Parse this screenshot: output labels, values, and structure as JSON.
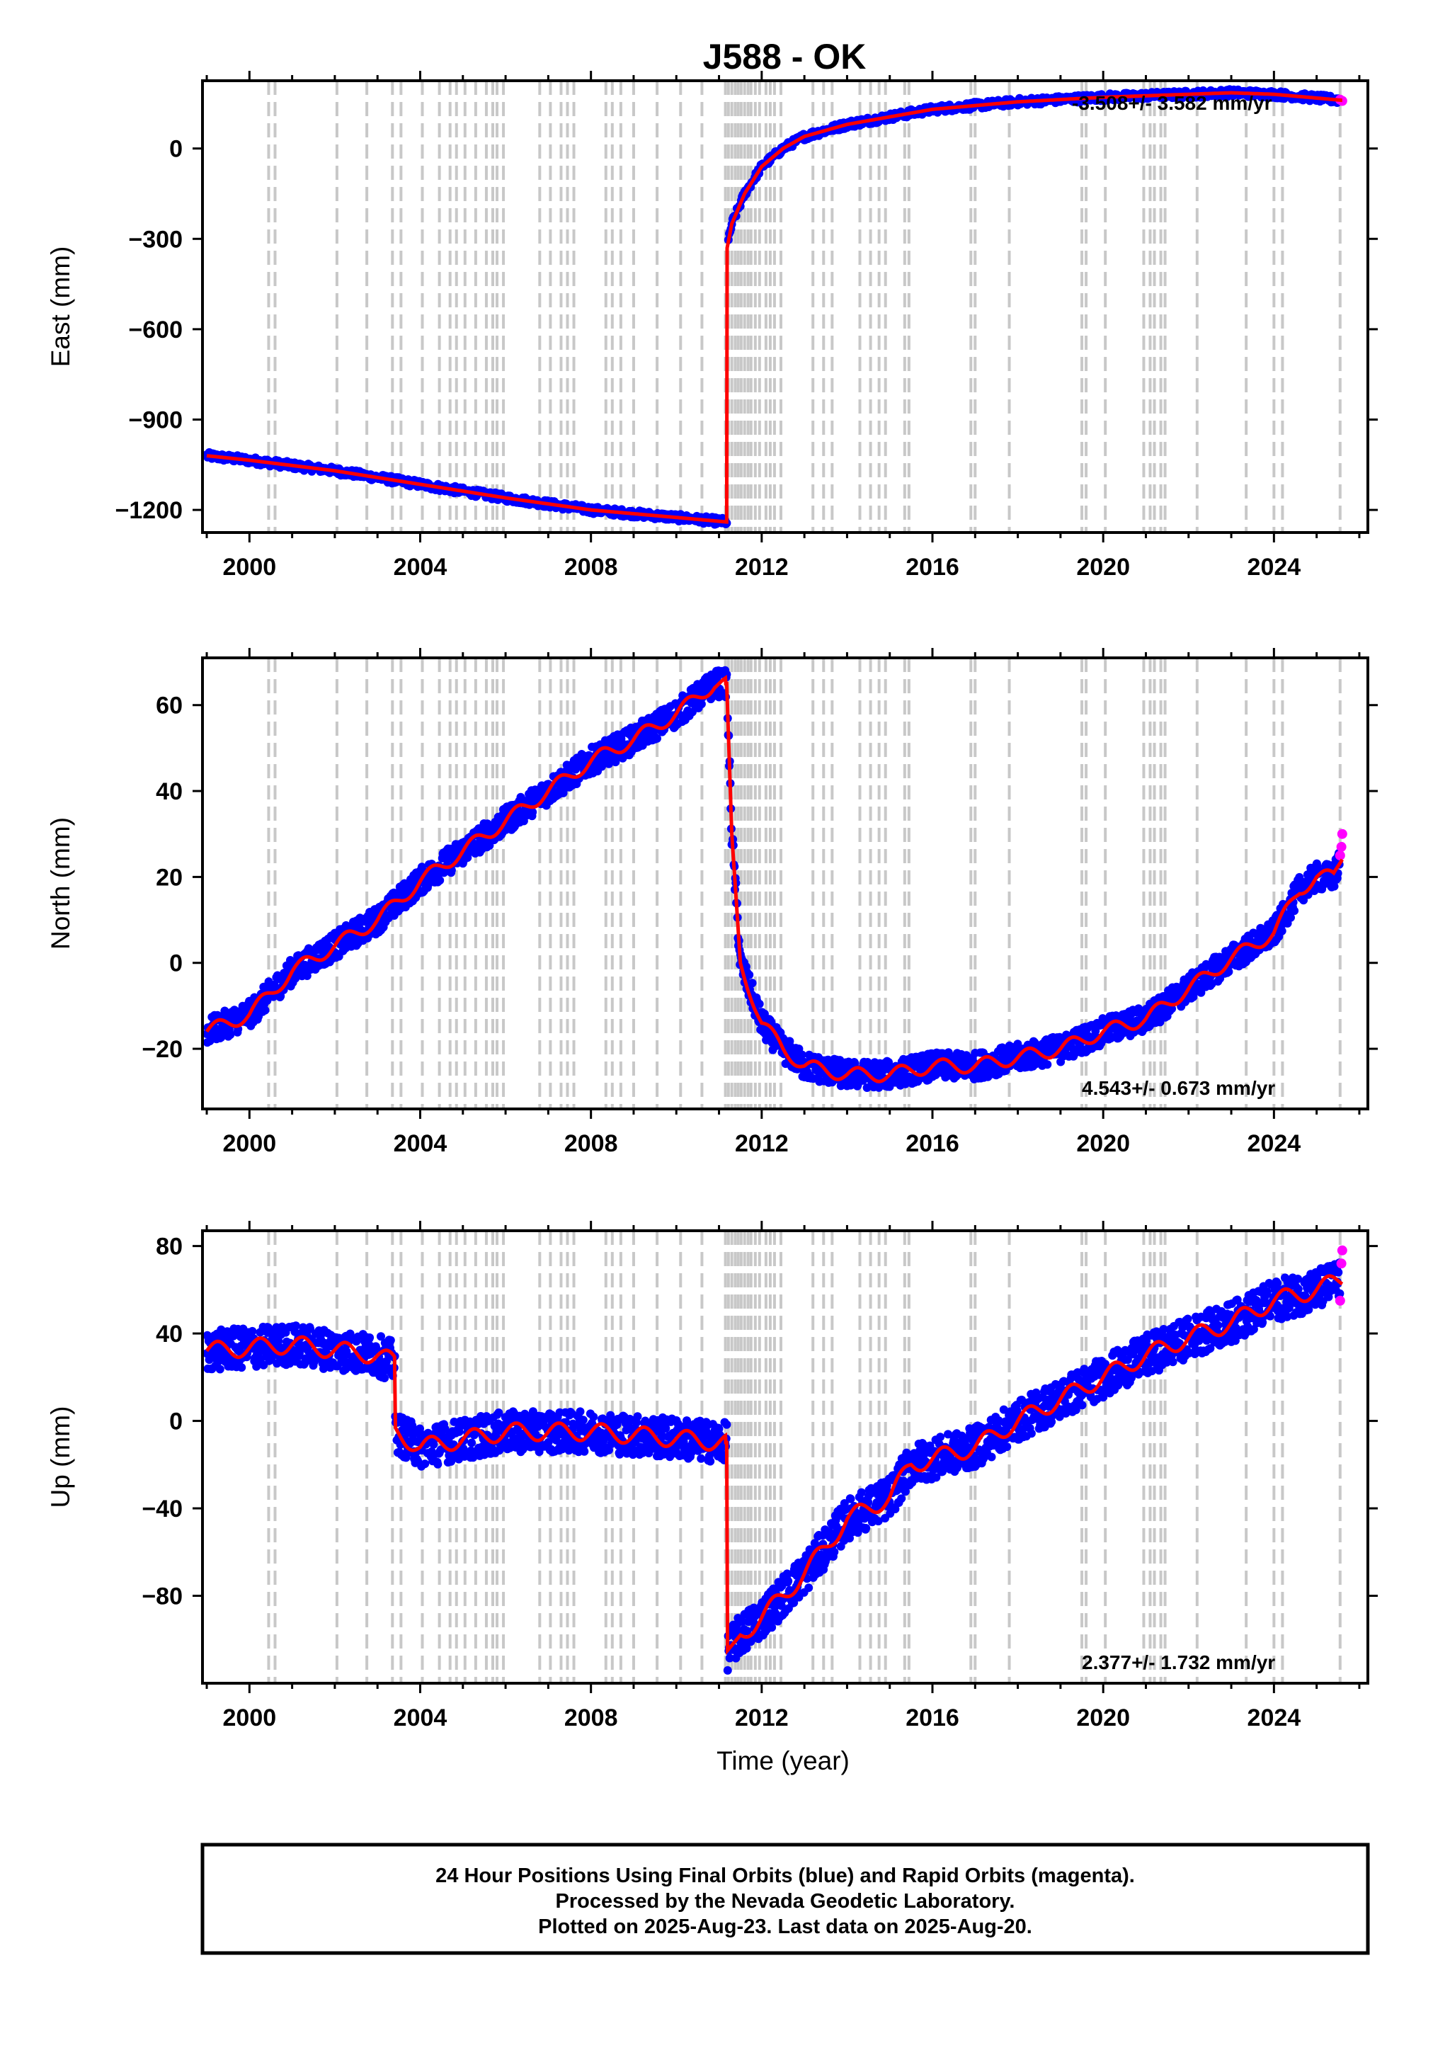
{
  "title": "J588 - OK",
  "colors": {
    "final": "#0000ff",
    "rapid": "#ff00ff",
    "model": "#ff0000",
    "eventline": "#c8c8c8",
    "frame": "#000000"
  },
  "footer": {
    "line1": "24 Hour Positions Using Final Orbits (blue) and Rapid Orbits (magenta).",
    "line2": "Processed by the Nevada Geodetic Laboratory.",
    "line3": "Plotted on 2025-Aug-23. Last data on 2025-Aug-20."
  },
  "chart_data": [
    {
      "type": "scatter",
      "name": "east",
      "ylabel": "East (mm)",
      "xlabel": "",
      "rate_text": "-3.508+/- 3.582 mm/yr",
      "rate_position": "top-right",
      "xlim": [
        1998.9,
        2026.2
      ],
      "ylim": [
        -1275,
        225
      ],
      "x_ticks": [
        2000,
        2004,
        2008,
        2012,
        2016,
        2020,
        2024
      ],
      "x_tick_labels": [
        "2000",
        "2004",
        "2008",
        "2012",
        "2016",
        "2020",
        "2024"
      ],
      "y_ticks": [
        -1200,
        -900,
        -600,
        -300,
        0
      ],
      "y_tick_labels": [
        "−1200",
        "−900",
        "−600",
        "−300",
        "0"
      ],
      "trend_points": [
        [
          1999.0,
          -1020
        ],
        [
          2000.0,
          -1035
        ],
        [
          2002.0,
          -1070
        ],
        [
          2004.0,
          -1115
        ],
        [
          2006.0,
          -1160
        ],
        [
          2008.0,
          -1200
        ],
        [
          2010.0,
          -1225
        ],
        [
          2011.18,
          -1240
        ],
        [
          2011.19,
          -330
        ],
        [
          2011.3,
          -250
        ],
        [
          2011.6,
          -150
        ],
        [
          2012.0,
          -60
        ],
        [
          2012.5,
          0
        ],
        [
          2013.0,
          40
        ],
        [
          2014.0,
          80
        ],
        [
          2015.0,
          105
        ],
        [
          2016.0,
          130
        ],
        [
          2018.0,
          155
        ],
        [
          2020.0,
          170
        ],
        [
          2022.0,
          180
        ],
        [
          2023.0,
          185
        ],
        [
          2024.0,
          180
        ],
        [
          2025.6,
          160
        ]
      ],
      "rapid_points": [
        [
          2025.55,
          162
        ],
        [
          2025.6,
          158
        ]
      ]
    },
    {
      "type": "scatter",
      "name": "north",
      "ylabel": "North (mm)",
      "xlabel": "",
      "rate_text": "4.543+/- 0.673 mm/yr",
      "rate_position": "bottom-right",
      "xlim": [
        1998.9,
        2026.2
      ],
      "ylim": [
        -34,
        71
      ],
      "x_ticks": [
        2000,
        2004,
        2008,
        2012,
        2016,
        2020,
        2024
      ],
      "x_tick_labels": [
        "2000",
        "2004",
        "2008",
        "2012",
        "2016",
        "2020",
        "2024"
      ],
      "y_ticks": [
        -20,
        0,
        20,
        40,
        60
      ],
      "y_tick_labels": [
        "−20",
        "0",
        "20",
        "40",
        "60"
      ],
      "trend_points": [
        [
          1999.0,
          -16
        ],
        [
          2000.0,
          -12
        ],
        [
          2001.0,
          -2
        ],
        [
          2002.0,
          4
        ],
        [
          2003.0,
          10
        ],
        [
          2004.0,
          19
        ],
        [
          2005.0,
          26
        ],
        [
          2006.0,
          33
        ],
        [
          2007.0,
          40
        ],
        [
          2008.0,
          47
        ],
        [
          2009.0,
          52
        ],
        [
          2010.0,
          58
        ],
        [
          2010.9,
          65
        ],
        [
          2011.18,
          65
        ],
        [
          2011.3,
          30
        ],
        [
          2011.5,
          0
        ],
        [
          2012.0,
          -14
        ],
        [
          2012.5,
          -20
        ],
        [
          2013.0,
          -24
        ],
        [
          2014.0,
          -26
        ],
        [
          2015.0,
          -26
        ],
        [
          2016.0,
          -24
        ],
        [
          2017.0,
          -24
        ],
        [
          2018.0,
          -22
        ],
        [
          2019.0,
          -20
        ],
        [
          2020.0,
          -16
        ],
        [
          2021.0,
          -13
        ],
        [
          2022.0,
          -6
        ],
        [
          2023.0,
          1
        ],
        [
          2024.0,
          7
        ],
        [
          2024.6,
          17
        ],
        [
          2025.0,
          20
        ],
        [
          2025.4,
          20
        ],
        [
          2025.6,
          25
        ]
      ],
      "rapid_points": [
        [
          2025.55,
          25
        ],
        [
          2025.58,
          27
        ],
        [
          2025.6,
          30
        ]
      ]
    },
    {
      "type": "scatter",
      "name": "up",
      "ylabel": "Up (mm)",
      "xlabel": "Time (year)",
      "rate_text": "2.377+/- 1.732 mm/yr",
      "rate_position": "bottom-right",
      "xlim": [
        1998.9,
        2026.2
      ],
      "ylim": [
        -120,
        87
      ],
      "x_ticks": [
        2000,
        2004,
        2008,
        2012,
        2016,
        2020,
        2024
      ],
      "x_tick_labels": [
        "2000",
        "2004",
        "2008",
        "2012",
        "2016",
        "2020",
        "2024"
      ],
      "y_ticks": [
        -80,
        -40,
        0,
        40,
        80
      ],
      "y_tick_labels": [
        "−80",
        "−40",
        "0",
        "40",
        "80"
      ],
      "trend_points": [
        [
          1999.0,
          32
        ],
        [
          2001.0,
          35
        ],
        [
          2003.0,
          30
        ],
        [
          2003.4,
          27
        ],
        [
          2003.42,
          -5
        ],
        [
          2004.0,
          -12
        ],
        [
          2006.0,
          -5
        ],
        [
          2008.0,
          -5
        ],
        [
          2010.0,
          -8
        ],
        [
          2011.18,
          -10
        ],
        [
          2011.2,
          -105
        ],
        [
          2011.5,
          -98
        ],
        [
          2012.0,
          -90
        ],
        [
          2013.0,
          -70
        ],
        [
          2014.0,
          -45
        ],
        [
          2015.0,
          -35
        ],
        [
          2015.5,
          -20
        ],
        [
          2017.0,
          -12
        ],
        [
          2018.0,
          0
        ],
        [
          2019.0,
          10
        ],
        [
          2020.0,
          20
        ],
        [
          2021.0,
          30
        ],
        [
          2022.0,
          38
        ],
        [
          2023.0,
          45
        ],
        [
          2024.0,
          55
        ],
        [
          2025.0,
          60
        ],
        [
          2025.6,
          65
        ]
      ],
      "rapid_points": [
        [
          2025.55,
          55
        ],
        [
          2025.58,
          72
        ],
        [
          2025.6,
          78
        ]
      ]
    }
  ],
  "event_years": [
    2000.45,
    2000.6,
    2002.05,
    2002.75,
    2003.35,
    2003.55,
    2004.05,
    2004.45,
    2004.7,
    2004.85,
    2005.05,
    2005.3,
    2005.55,
    2005.7,
    2005.8,
    2005.95,
    2006.8,
    2007.05,
    2007.3,
    2007.45,
    2007.6,
    2008.35,
    2008.5,
    2008.7,
    2009.0,
    2009.55,
    2010.1,
    2010.6,
    2011.15,
    2011.22,
    2011.3,
    2011.38,
    2011.45,
    2011.52,
    2011.6,
    2011.68,
    2011.75,
    2011.85,
    2011.95,
    2012.1,
    2012.2,
    2012.3,
    2012.45,
    2013.2,
    2013.45,
    2013.65,
    2014.3,
    2014.55,
    2014.75,
    2014.9,
    2015.35,
    2015.45,
    2016.9,
    2017.0,
    2017.8,
    2019.5,
    2019.6,
    2020.05,
    2020.95,
    2021.1,
    2021.2,
    2021.35,
    2021.45,
    2022.2,
    2023.35,
    2024.0,
    2024.2,
    2025.55
  ]
}
